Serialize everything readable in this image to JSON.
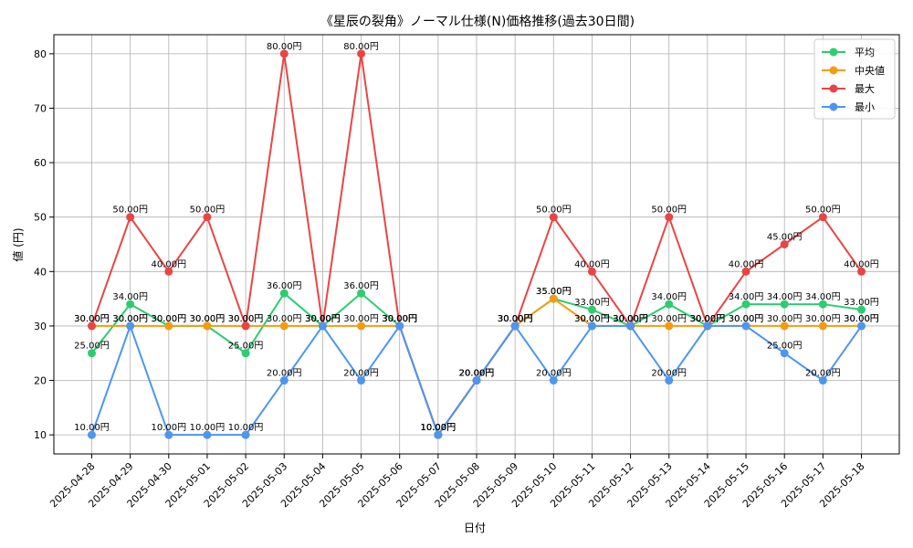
{
  "chart_data": {
    "type": "line",
    "title": "《星辰の裂角》ノーマル仕様(N)価格推移(過去30日間)",
    "xlabel": "日付",
    "ylabel": "値 (円)",
    "ylim": [
      6.5,
      83.5
    ],
    "yticks": [
      10,
      20,
      30,
      40,
      50,
      60,
      70,
      80
    ],
    "grid": true,
    "legend_position": "top-right",
    "value_suffix": "円",
    "categories": [
      "2025-04-28",
      "2025-04-29",
      "2025-04-30",
      "2025-05-01",
      "2025-05-02",
      "2025-05-03",
      "2025-05-04",
      "2025-05-05",
      "2025-05-06",
      "2025-05-07",
      "2025-05-08",
      "2025-05-09",
      "2025-05-10",
      "2025-05-11",
      "2025-05-12",
      "2025-05-13",
      "2025-05-14",
      "2025-05-15",
      "2025-05-16",
      "2025-05-17",
      "2025-05-18"
    ],
    "series": [
      {
        "name": "平均",
        "color": "#2ecc71",
        "values": [
          25,
          34,
          30,
          30,
          25,
          36,
          30,
          36,
          30,
          10,
          20,
          30,
          35,
          33,
          30,
          34,
          30,
          34,
          34,
          34,
          33
        ]
      },
      {
        "name": "中央値",
        "color": "#f39c12",
        "values": [
          30,
          30,
          30,
          30,
          30,
          30,
          30,
          30,
          30,
          10,
          20,
          30,
          35,
          30,
          30,
          30,
          30,
          30,
          30,
          30,
          30
        ]
      },
      {
        "name": "最大",
        "color": "#e84545",
        "values": [
          30,
          50,
          40,
          50,
          30,
          80,
          30,
          80,
          30,
          10,
          20,
          30,
          50,
          40,
          30,
          50,
          30,
          40,
          45,
          50,
          40
        ]
      },
      {
        "name": "最小",
        "color": "#4d96f0",
        "values": [
          10,
          30,
          10,
          10,
          10,
          20,
          30,
          20,
          30,
          10,
          20,
          30,
          20,
          30,
          30,
          20,
          30,
          30,
          25,
          20,
          30
        ]
      }
    ]
  }
}
